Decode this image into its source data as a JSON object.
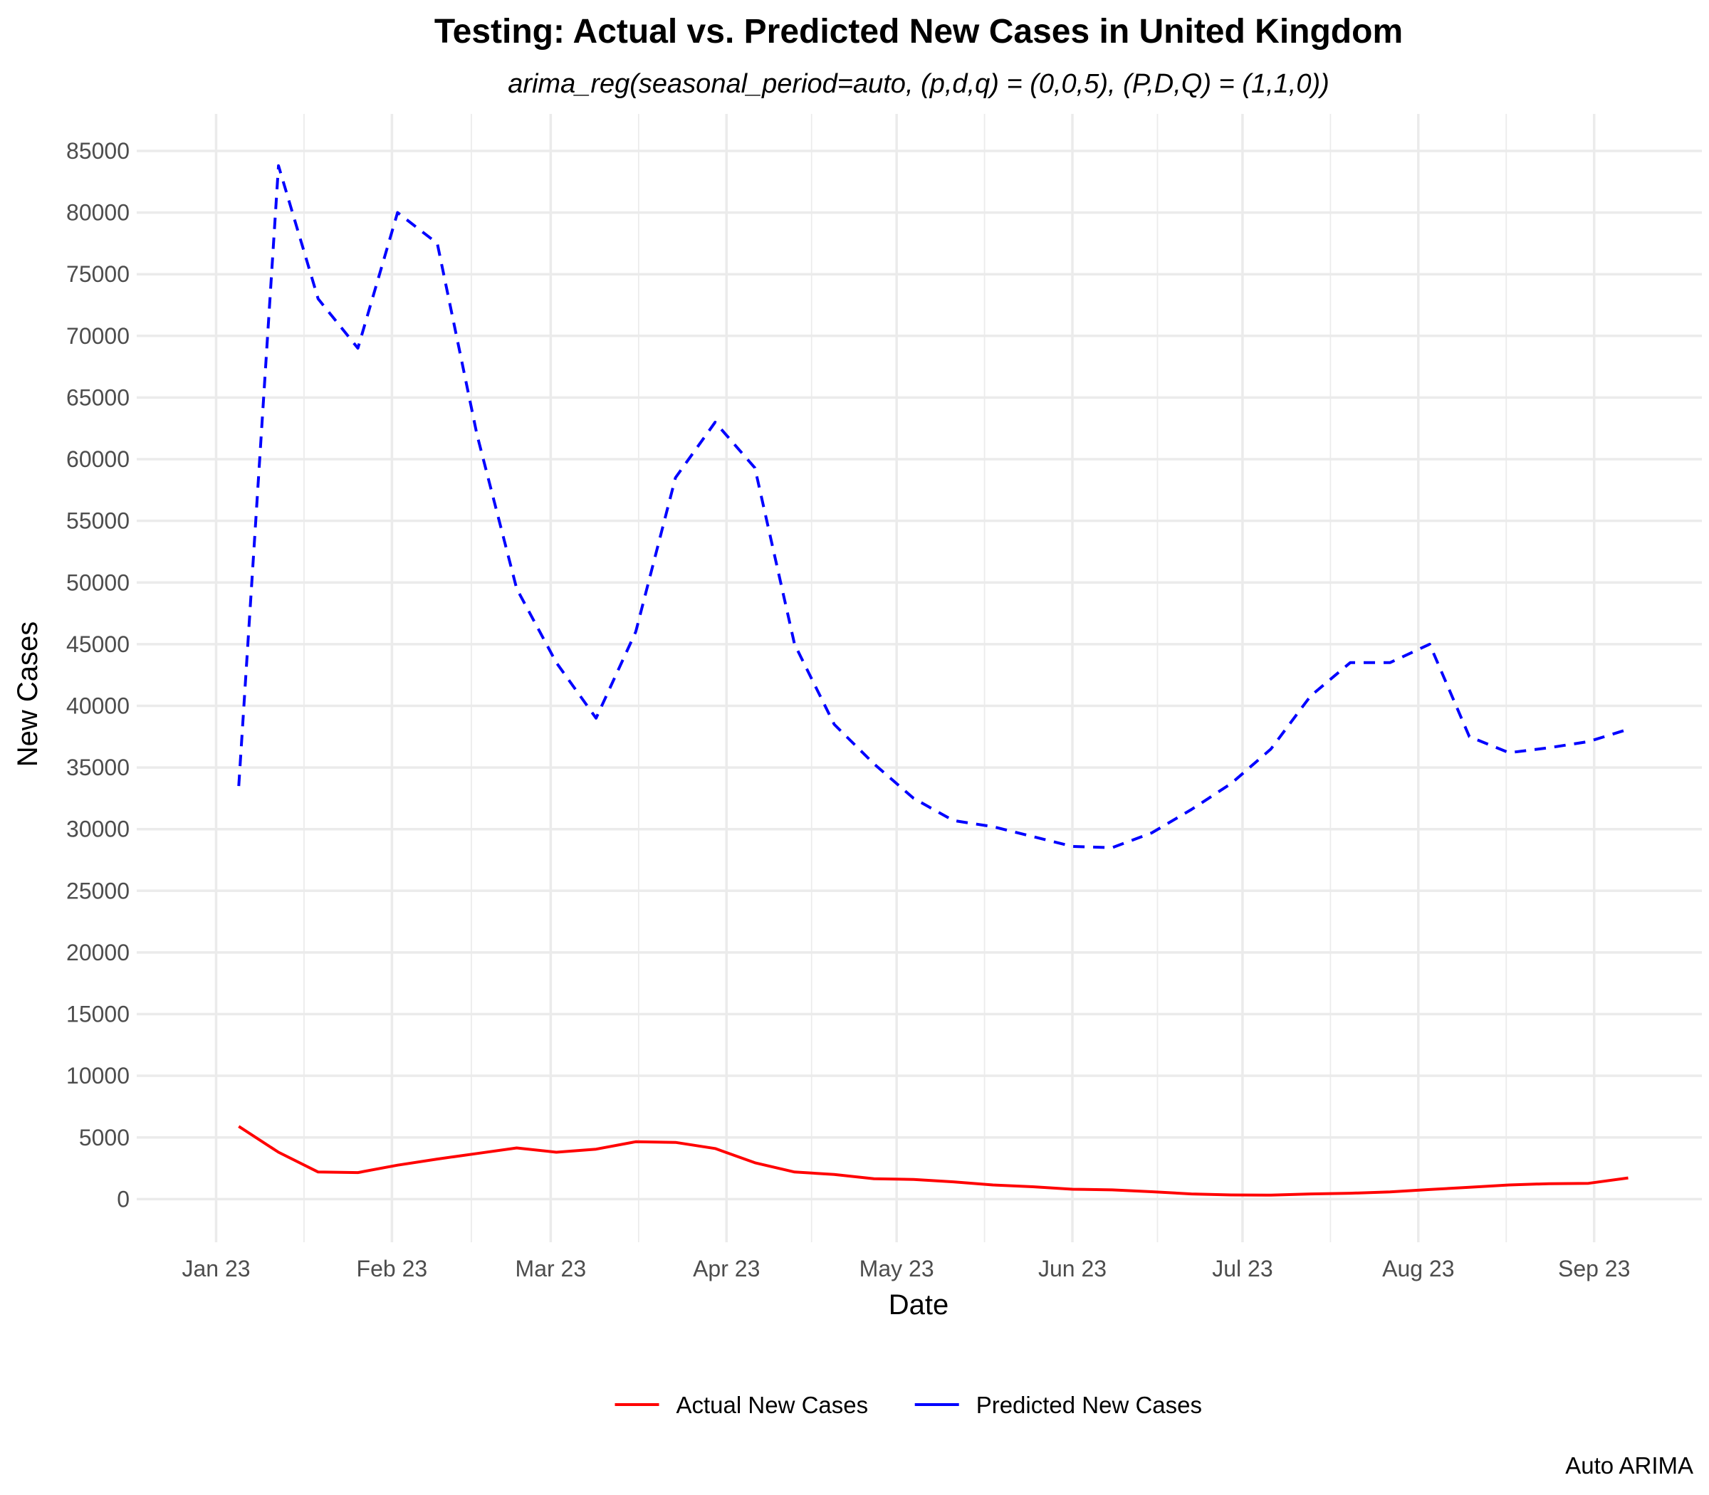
{
  "chart_data": {
    "type": "line",
    "title": "Testing: Actual vs. Predicted New Cases in United Kingdom",
    "subtitle": "arima_reg(seasonal_period=auto, (p,d,q) = (0,0,5), (P,D,Q) = (1,1,0))",
    "xlabel": "Date",
    "ylabel": "New Cases",
    "caption": "Auto ARIMA",
    "x_ticks": [
      {
        "date": "2023-01-01",
        "label": "Jan 23"
      },
      {
        "date": "2023-02-01",
        "label": "Feb 23"
      },
      {
        "date": "2023-03-01",
        "label": "Mar 23"
      },
      {
        "date": "2023-04-01",
        "label": "Apr 23"
      },
      {
        "date": "2023-05-01",
        "label": "May 23"
      },
      {
        "date": "2023-06-01",
        "label": "Jun 23"
      },
      {
        "date": "2023-07-01",
        "label": "Jul 23"
      },
      {
        "date": "2023-08-01",
        "label": "Aug 23"
      },
      {
        "date": "2023-09-01",
        "label": "Sep 23"
      }
    ],
    "xlim": [
      "2022-12-18",
      "2023-09-20"
    ],
    "y_ticks": [
      0,
      5000,
      10000,
      15000,
      20000,
      25000,
      30000,
      35000,
      40000,
      45000,
      50000,
      55000,
      60000,
      65000,
      70000,
      75000,
      80000,
      85000
    ],
    "ylim": [
      -3500,
      88000
    ],
    "grid": true,
    "legend_position": "bottom",
    "x": [
      "2023-01-05",
      "2023-01-12",
      "2023-01-19",
      "2023-01-26",
      "2023-02-02",
      "2023-02-09",
      "2023-02-16",
      "2023-02-23",
      "2023-03-02",
      "2023-03-09",
      "2023-03-16",
      "2023-03-23",
      "2023-03-30",
      "2023-04-06",
      "2023-04-13",
      "2023-04-20",
      "2023-04-27",
      "2023-05-04",
      "2023-05-11",
      "2023-05-18",
      "2023-05-25",
      "2023-06-01",
      "2023-06-08",
      "2023-06-15",
      "2023-06-22",
      "2023-06-29",
      "2023-07-06",
      "2023-07-13",
      "2023-07-20",
      "2023-07-27",
      "2023-08-03",
      "2023-08-10",
      "2023-08-17",
      "2023-08-24",
      "2023-08-31",
      "2023-09-07"
    ],
    "series": [
      {
        "name": "Actual New Cases",
        "color": "#ff0000",
        "dash": "solid",
        "values": [
          5900,
          3800,
          2200,
          2150,
          2750,
          3250,
          3700,
          4150,
          3800,
          4050,
          4650,
          4600,
          4100,
          2950,
          2200,
          2000,
          1650,
          1600,
          1400,
          1150,
          1000,
          800,
          750,
          600,
          420,
          340,
          320,
          420,
          480,
          580,
          780,
          960,
          1150,
          1250,
          1280,
          1720
        ]
      },
      {
        "name": "Predicted New Cases",
        "color": "#0000ff",
        "dash": "dashed",
        "values": [
          33500,
          83800,
          73000,
          69000,
          80000,
          77500,
          62000,
          49500,
          43500,
          39000,
          46000,
          58500,
          63000,
          59300,
          45000,
          38500,
          35300,
          32500,
          30700,
          30200,
          29400,
          28600,
          28500,
          29700,
          31600,
          33700,
          36500,
          40800,
          43500,
          43500,
          45000,
          37500,
          36200,
          36600,
          37100,
          38100
        ]
      }
    ]
  }
}
